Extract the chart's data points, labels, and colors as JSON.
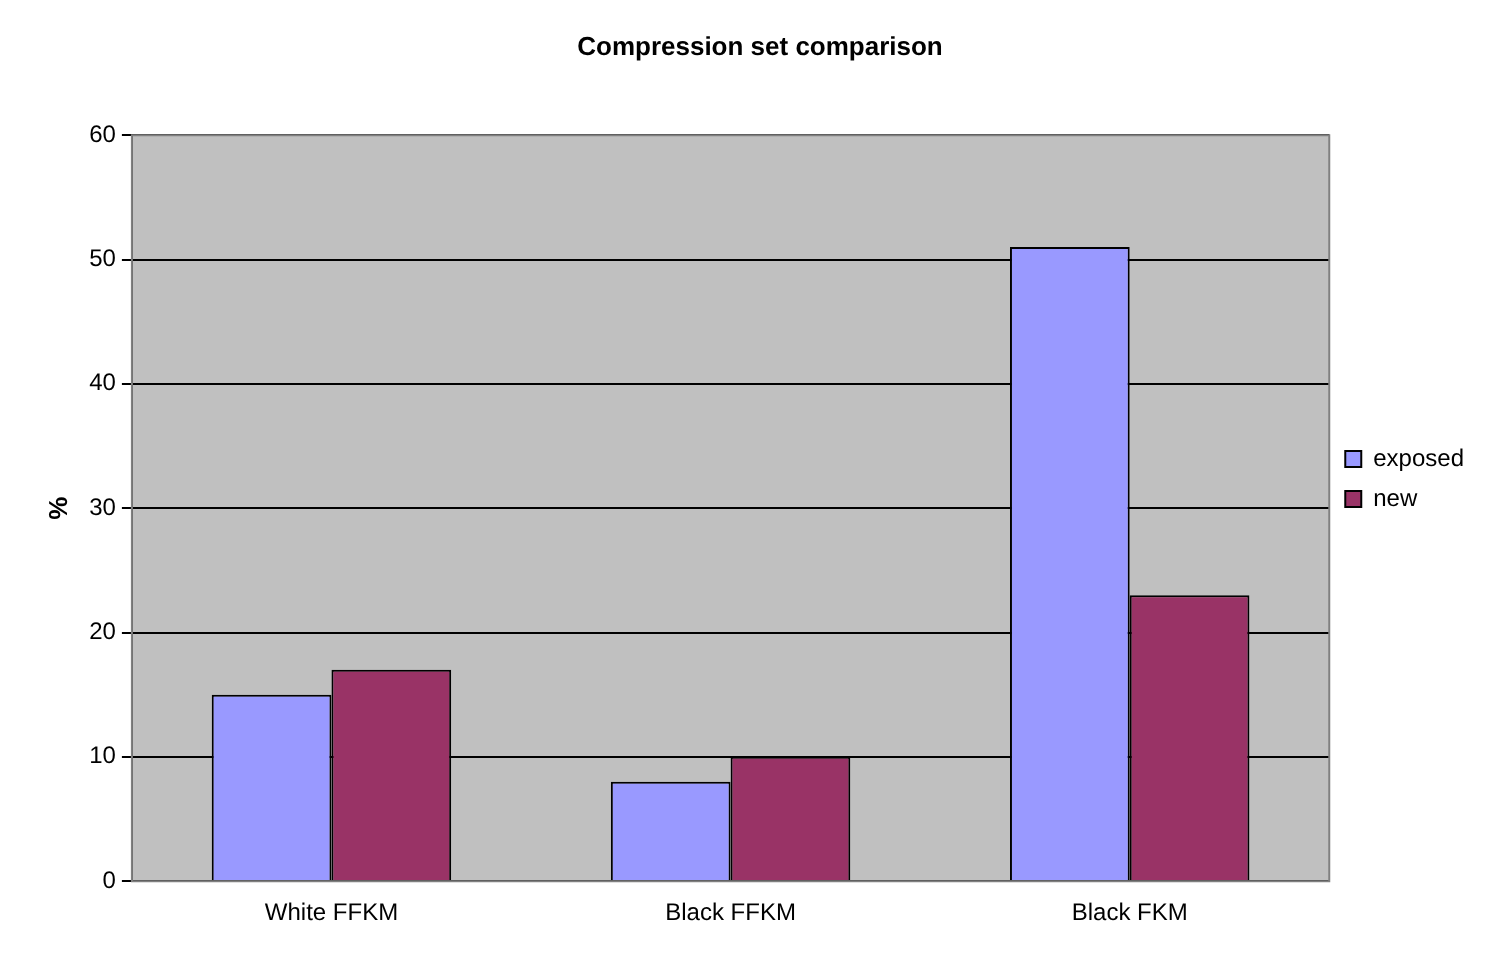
{
  "chart_data": {
    "type": "bar",
    "title": "Compression set comparison",
    "ylabel": "%",
    "categories": [
      "White FFKM",
      "Black FFKM",
      "Black FKM"
    ],
    "series": [
      {
        "name": "exposed",
        "color": "#9999ff",
        "values": [
          15,
          8,
          51
        ]
      },
      {
        "name": "new",
        "color": "#993366",
        "values": [
          17,
          10,
          23
        ]
      }
    ],
    "ylim": [
      0,
      60
    ],
    "yticks": [
      0,
      10,
      20,
      30,
      40,
      50,
      60
    ],
    "grid": "y",
    "legend": "right"
  }
}
